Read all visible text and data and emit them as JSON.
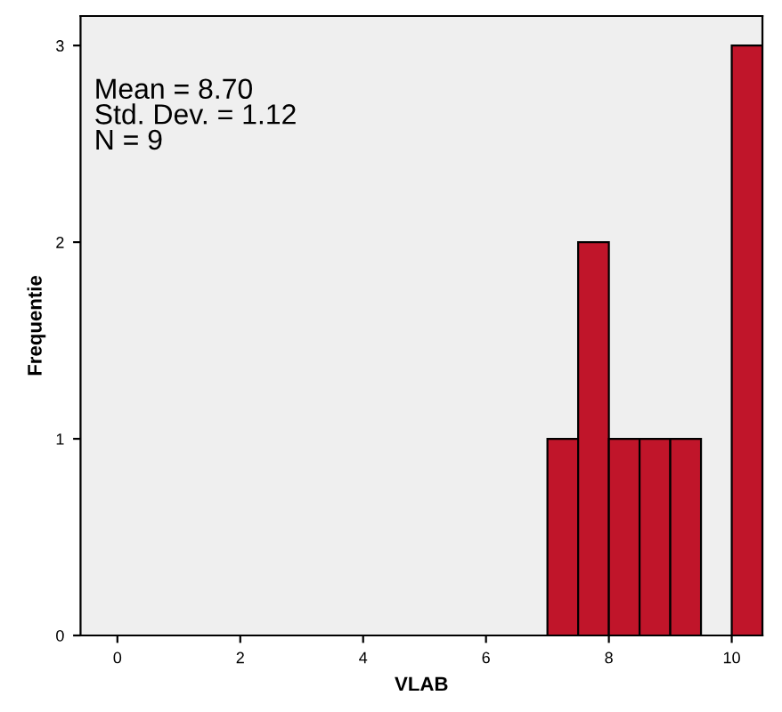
{
  "chart_data": {
    "type": "histogram",
    "xlabel": "VLAB",
    "ylabel": "Frequentie",
    "bins": [
      7,
      7.5,
      8,
      8.5,
      9,
      9.5,
      10,
      10.5
    ],
    "values": [
      1,
      2,
      1,
      1,
      1,
      0,
      3
    ],
    "color": "#c0152a",
    "xlim": [
      -0.6,
      10.5
    ],
    "xticks": [
      0,
      2,
      4,
      6,
      8,
      10
    ],
    "ylim": [
      0,
      3.15
    ],
    "yticks": [
      0,
      1,
      2,
      3
    ],
    "grid": false,
    "legend": false,
    "annotations": [
      "Mean = 8.70\nStd. Dev. = 1.12\nN = 9"
    ]
  }
}
